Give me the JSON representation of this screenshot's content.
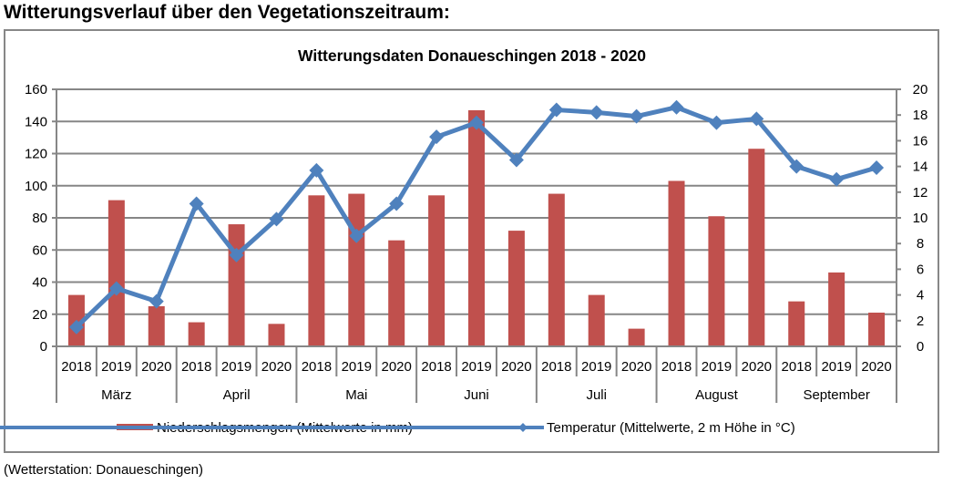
{
  "page": {
    "heading": "Witterungsverlauf über den Vegetationszeitraum:",
    "footer": "(Wetterstation: Donaueschingen)"
  },
  "colors": {
    "bar": "#C0504D",
    "line": "#4F81BD",
    "grid": "#868686",
    "frame": "#878787"
  },
  "chart_data": {
    "type": "bar",
    "combo": "bar + line (secondary axis)",
    "title": "Witterungsdaten Donaueschingen 2018 - 2020",
    "xlabel": "",
    "ylabel": "",
    "y2label": "",
    "ylim": [
      0,
      160
    ],
    "yticks": [
      0,
      20,
      40,
      60,
      80,
      100,
      120,
      140,
      160
    ],
    "y2lim": [
      0,
      20
    ],
    "y2ticks": [
      0,
      2,
      4,
      6,
      8,
      10,
      12,
      14,
      16,
      18,
      20
    ],
    "grid": true,
    "legend_position": "bottom",
    "groups": [
      "März",
      "April",
      "Mai",
      "Juni",
      "Juli",
      "August",
      "September"
    ],
    "years": [
      "2018",
      "2019",
      "2020"
    ],
    "categories": [
      "2018",
      "2019",
      "2020",
      "2018",
      "2019",
      "2020",
      "2018",
      "2019",
      "2020",
      "2018",
      "2019",
      "2020",
      "2018",
      "2019",
      "2020",
      "2018",
      "2019",
      "2020",
      "2018",
      "2019",
      "2020"
    ],
    "series": [
      {
        "name": "Niederschlagsmengen (Mittelwerte in mm)",
        "type": "bar",
        "axis": "left",
        "values": [
          32,
          91,
          25,
          15,
          76,
          14,
          94,
          95,
          66,
          94,
          147,
          72,
          95,
          32,
          11,
          103,
          81,
          123,
          28,
          46,
          21
        ]
      },
      {
        "name": "Temperatur (Mittelwerte, 2 m Höhe in °C)",
        "type": "line",
        "axis": "right",
        "marker": "diamond",
        "values": [
          1.5,
          4.5,
          3.5,
          11.1,
          7.1,
          9.9,
          13.7,
          8.6,
          11.1,
          16.3,
          17.4,
          14.5,
          18.4,
          18.2,
          17.9,
          18.6,
          17.4,
          17.7,
          14.0,
          13.0,
          13.9
        ]
      }
    ]
  }
}
